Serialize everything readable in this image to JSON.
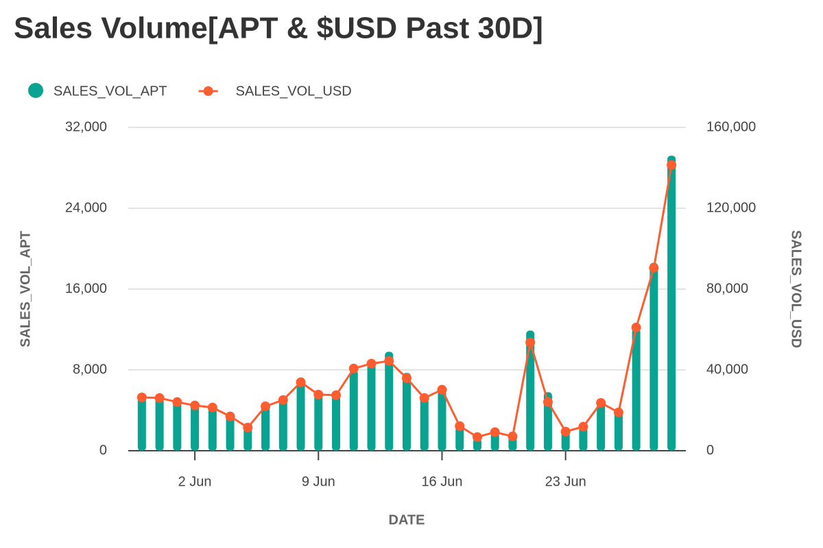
{
  "chart_data": {
    "type": "bar_line",
    "title": "Sales Volume[APT & $USD Past 30D]",
    "x_label": "DATE",
    "y_label": "SALES_VOL_APT",
    "y2_label": "SALES_VOL_USD",
    "categories": [
      null,
      null,
      null,
      "2 Jun",
      null,
      null,
      null,
      null,
      null,
      null,
      "9 Jun",
      null,
      null,
      null,
      null,
      null,
      null,
      "16 Jun",
      null,
      null,
      null,
      null,
      null,
      null,
      "23 Jun",
      null,
      null,
      null,
      null,
      null,
      null
    ],
    "series": [
      {
        "name": "SALES_VOL_APT",
        "color": "#08a391",
        "type": "bar",
        "values": [
          5400,
          5400,
          4900,
          4600,
          4400,
          3600,
          2400,
          4500,
          5100,
          6800,
          5600,
          5500,
          8000,
          8700,
          9800,
          7700,
          5300,
          6000,
          2400,
          1200,
          1800,
          1400,
          11900,
          5800,
          2000,
          2400,
          4700,
          3900,
          12100,
          18600,
          29200
        ]
      },
      {
        "name": "SALES_VOL_USD",
        "color": "#ff5c30",
        "type": "line",
        "axis": "y2",
        "values": [
          26400,
          26100,
          24100,
          22400,
          21400,
          17000,
          11500,
          22000,
          25100,
          33900,
          27800,
          27500,
          40700,
          43100,
          44400,
          35900,
          26100,
          30200,
          12200,
          6800,
          9200,
          7100,
          53600,
          24100,
          9500,
          11900,
          23700,
          19000,
          61000,
          90500,
          141400
        ]
      }
    ],
    "ylim": [
      0,
      32000
    ],
    "yticks": [
      0,
      {
        "value": 8000,
        "label": "8,000"
      },
      {
        "value": 16000,
        "label": "16,000"
      },
      {
        "value": 24000,
        "label": "24,000"
      },
      {
        "value": 32000,
        "label": "32,000"
      }
    ],
    "y2lim": [
      0,
      160000
    ],
    "y2ticks": [
      0,
      {
        "value": 40000,
        "label": "40,000"
      },
      {
        "value": 80000,
        "label": "80,000"
      },
      {
        "value": 120000,
        "label": "120,000"
      },
      {
        "value": 160000,
        "label": "160,000"
      }
    ],
    "grid": true,
    "legend": "top"
  }
}
